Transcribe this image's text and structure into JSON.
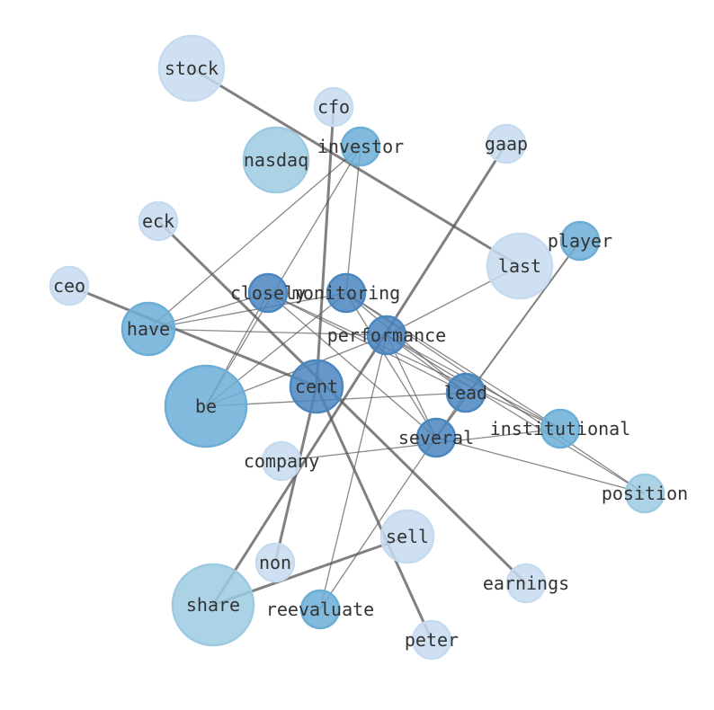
{
  "diagram": {
    "type": "network",
    "colors": {
      "light": "#c6dbef",
      "medium_light": "#9ecae1",
      "medium": "#6baed6",
      "dark": "#4a86c0",
      "edge": "#555555"
    },
    "nodes": [
      {
        "id": "stock",
        "shade": "light",
        "size": "large"
      },
      {
        "id": "cfo",
        "shade": "light",
        "size": "small"
      },
      {
        "id": "investor",
        "shade": "medium",
        "size": "small"
      },
      {
        "id": "nasdaq",
        "shade": "medium_light",
        "size": "large"
      },
      {
        "id": "gaap",
        "shade": "light",
        "size": "small"
      },
      {
        "id": "eck",
        "shade": "light",
        "size": "small"
      },
      {
        "id": "player",
        "shade": "medium",
        "size": "small"
      },
      {
        "id": "last",
        "shade": "light",
        "size": "large"
      },
      {
        "id": "ceo",
        "shade": "light",
        "size": "small"
      },
      {
        "id": "closely",
        "shade": "dark",
        "size": "small"
      },
      {
        "id": "monitoring",
        "shade": "dark",
        "size": "small"
      },
      {
        "id": "have",
        "shade": "medium",
        "size": "medium"
      },
      {
        "id": "performance",
        "shade": "dark",
        "size": "small"
      },
      {
        "id": "cent",
        "shade": "dark",
        "size": "medium"
      },
      {
        "id": "be",
        "shade": "medium",
        "size": "xlarge"
      },
      {
        "id": "lead",
        "shade": "dark",
        "size": "small"
      },
      {
        "id": "institutional",
        "shade": "medium",
        "size": "small"
      },
      {
        "id": "several",
        "shade": "dark",
        "size": "small"
      },
      {
        "id": "company",
        "shade": "light",
        "size": "small"
      },
      {
        "id": "position",
        "shade": "medium_light",
        "size": "small"
      },
      {
        "id": "sell",
        "shade": "light",
        "size": "medium"
      },
      {
        "id": "non",
        "shade": "light",
        "size": "small"
      },
      {
        "id": "earnings",
        "shade": "light",
        "size": "small"
      },
      {
        "id": "share",
        "shade": "medium_light",
        "size": "xlarge"
      },
      {
        "id": "reevaluate",
        "shade": "medium",
        "size": "small"
      },
      {
        "id": "peter",
        "shade": "light",
        "size": "small"
      }
    ],
    "edges": [
      [
        "stock",
        "last",
        3
      ],
      [
        "ceo",
        "cent",
        3
      ],
      [
        "eck",
        "earnings",
        3
      ],
      [
        "cfo",
        "cent",
        3
      ],
      [
        "gaap",
        "share",
        3
      ],
      [
        "cent",
        "non",
        3
      ],
      [
        "cent",
        "peter",
        3
      ],
      [
        "sell",
        "share",
        3
      ],
      [
        "player",
        "several",
        2
      ],
      [
        "reevaluate",
        "lead",
        1.3
      ],
      [
        "have",
        "investor",
        1.3
      ],
      [
        "be",
        "investor",
        1.3
      ],
      [
        "be",
        "closely",
        1.3
      ],
      [
        "be",
        "monitoring",
        1.3
      ],
      [
        "be",
        "performance",
        1.3
      ],
      [
        "be",
        "lead",
        1.3
      ],
      [
        "have",
        "closely",
        1.3
      ],
      [
        "have",
        "monitoring",
        1.3
      ],
      [
        "have",
        "performance",
        1.3
      ],
      [
        "closely",
        "institutional",
        1.3
      ],
      [
        "closely",
        "lead",
        1.3
      ],
      [
        "closely",
        "several",
        1.3
      ],
      [
        "monitoring",
        "investor",
        1.3
      ],
      [
        "monitoring",
        "several",
        1.3
      ],
      [
        "monitoring",
        "lead",
        1.3
      ],
      [
        "monitoring",
        "institutional",
        1.3
      ],
      [
        "monitoring",
        "position",
        1.3
      ],
      [
        "performance",
        "last",
        1.3
      ],
      [
        "performance",
        "several",
        1.3
      ],
      [
        "performance",
        "reevaluate",
        1.3
      ],
      [
        "performance",
        "institutional",
        1.3
      ],
      [
        "performance",
        "position",
        1.3
      ],
      [
        "performance",
        "lead",
        1.3
      ],
      [
        "company",
        "institutional",
        1.3
      ],
      [
        "several",
        "position",
        1.3
      ]
    ]
  }
}
